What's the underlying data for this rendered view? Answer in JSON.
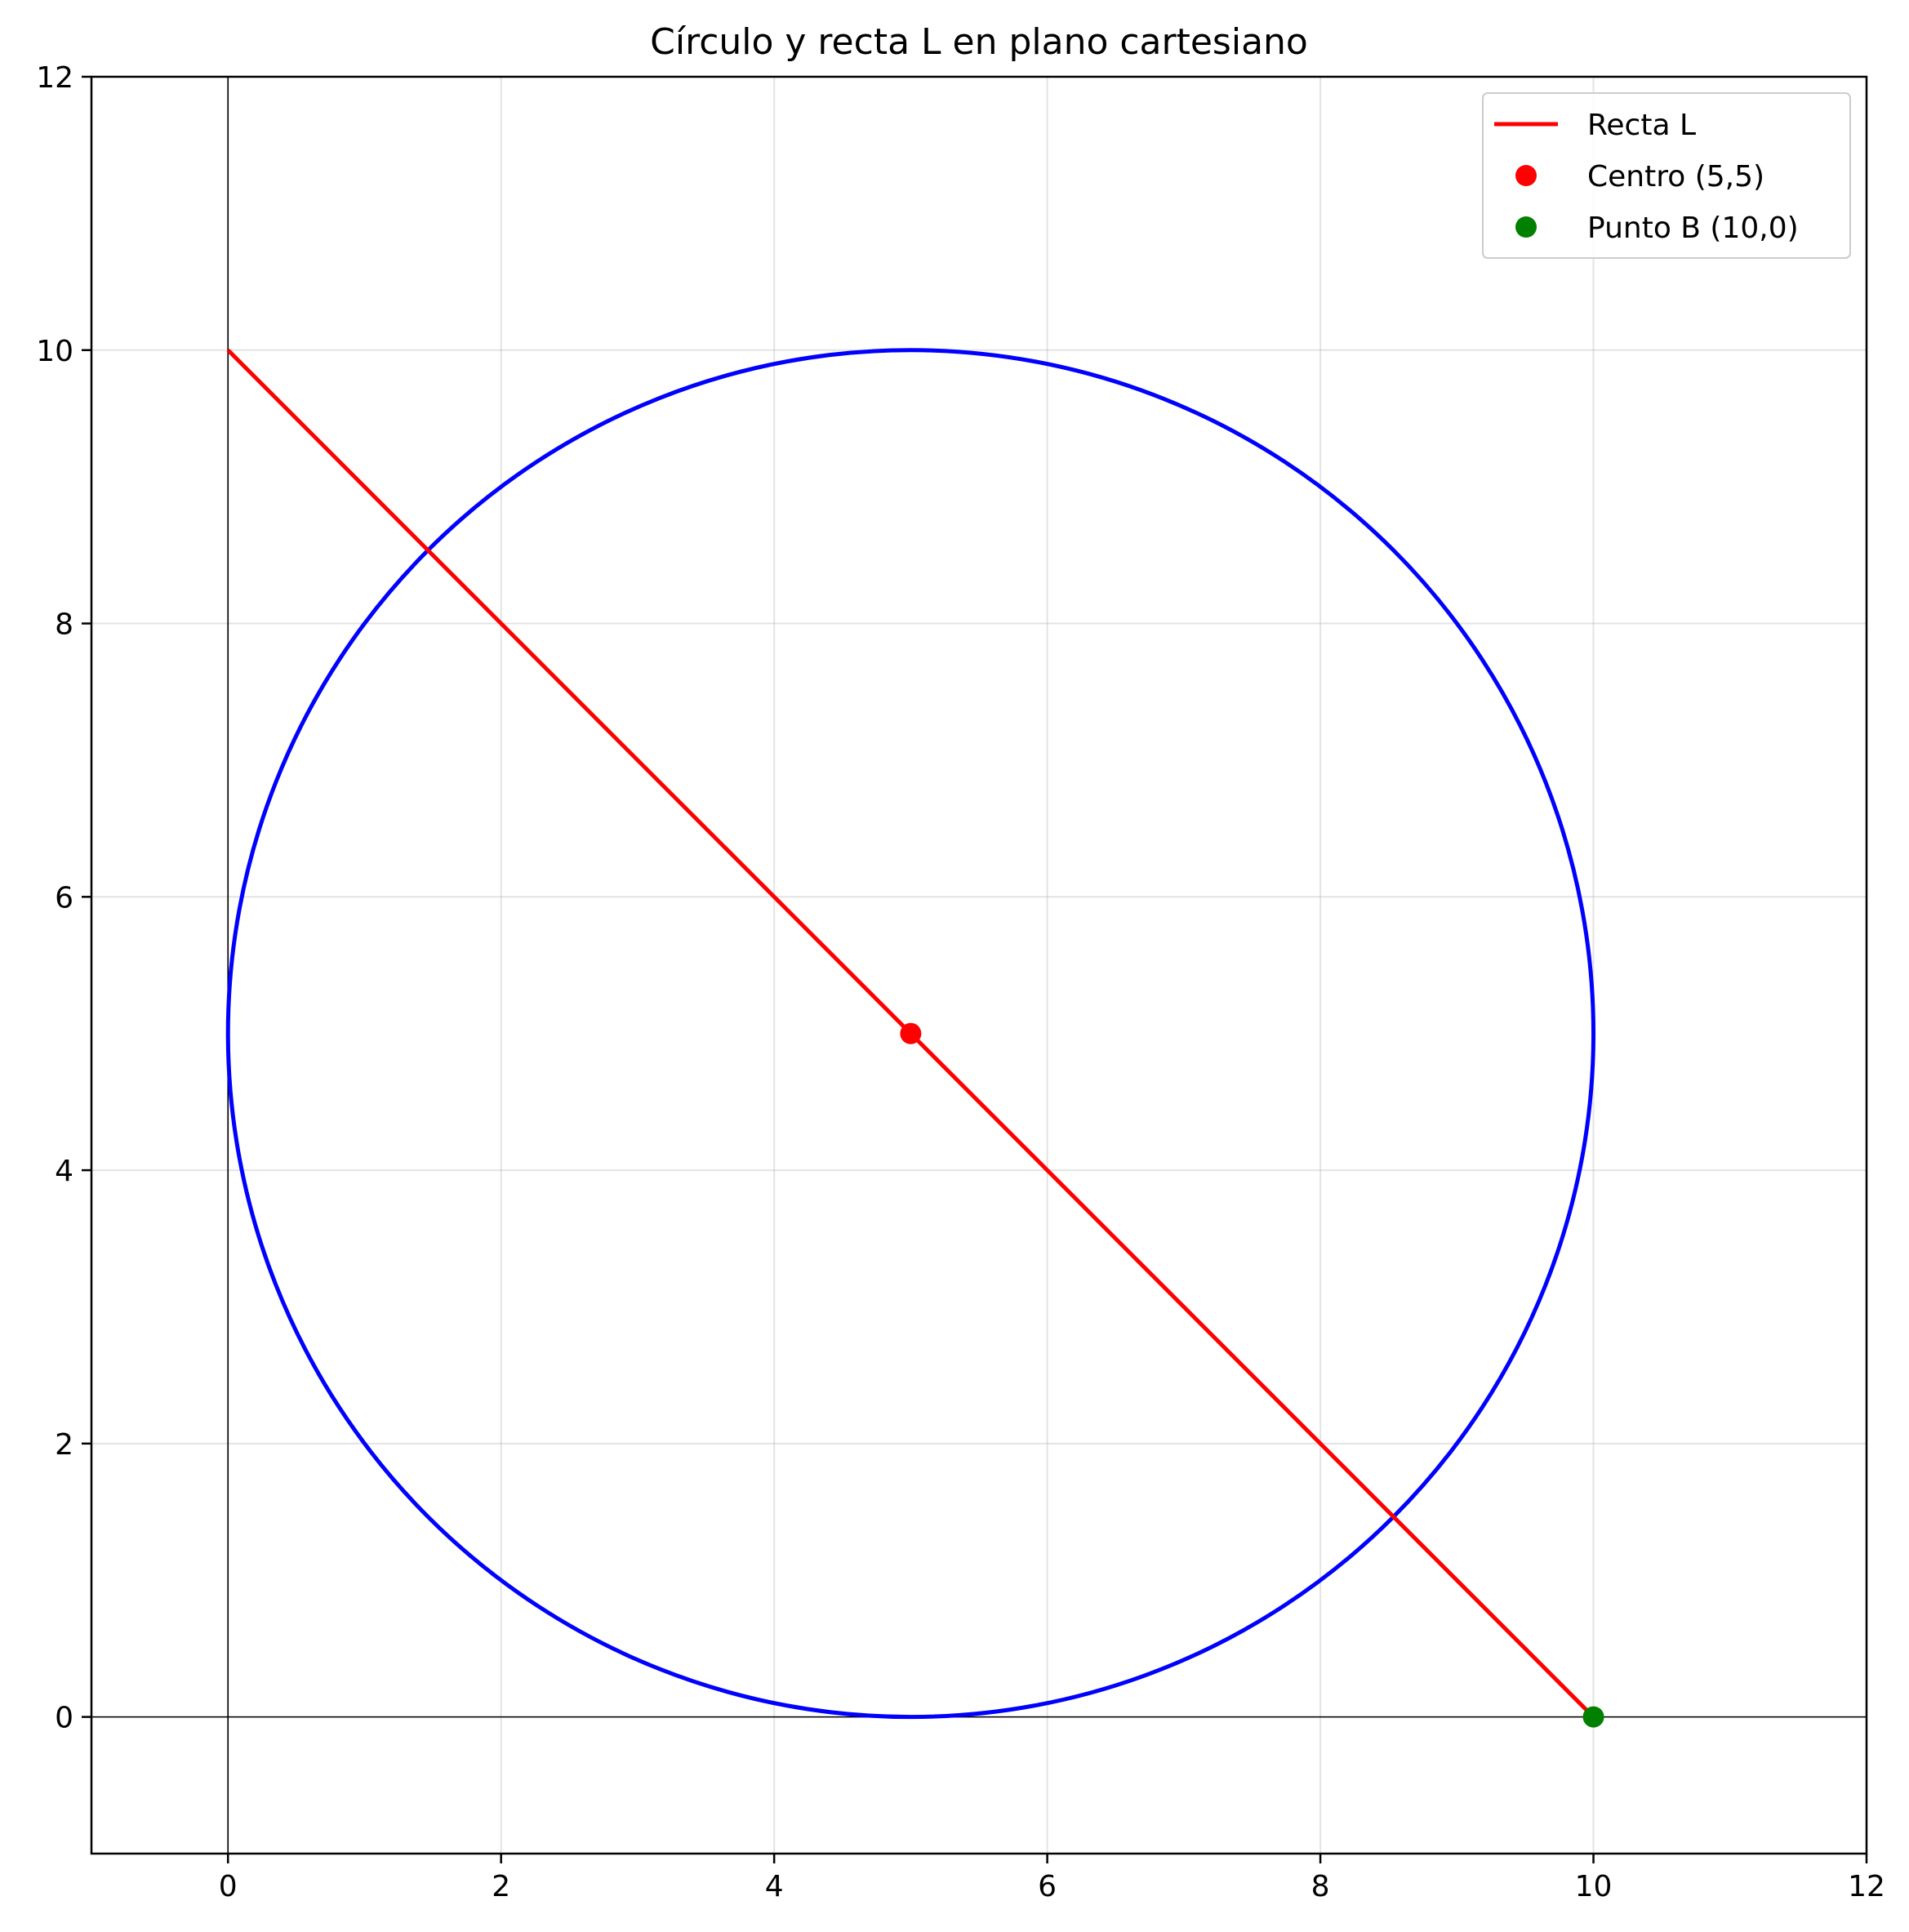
{
  "chart_data": {
    "type": "line",
    "title": "Círculo y recta L en plano cartesiano",
    "xlabel": "",
    "ylabel": "",
    "xlim": [
      -1,
      12
    ],
    "ylim": [
      -1,
      12
    ],
    "x_ticks": [
      0,
      2,
      4,
      6,
      8,
      10,
      12
    ],
    "y_ticks": [
      0,
      2,
      4,
      6,
      8,
      10,
      12
    ],
    "x_tick_labels": [
      "0",
      "2",
      "4",
      "6",
      "8",
      "10",
      "12"
    ],
    "y_tick_labels": [
      "0",
      "2",
      "4",
      "6",
      "8",
      "10",
      "12"
    ],
    "grid": true,
    "axis_lines": {
      "x": 0,
      "y": 0
    },
    "legend_position": "top-right",
    "circle": {
      "center": [
        5,
        5
      ],
      "radius": 5,
      "color": "#0000ff"
    },
    "series": [
      {
        "name": "Recta L",
        "kind": "line",
        "color": "#ff0000",
        "x": [
          0,
          10
        ],
        "y": [
          10,
          0
        ]
      },
      {
        "name": "Centro (5,5)",
        "kind": "point",
        "color": "#ff0000",
        "x": [
          5
        ],
        "y": [
          5
        ]
      },
      {
        "name": "Punto B (10,0)",
        "kind": "point",
        "color": "#008000",
        "x": [
          10
        ],
        "y": [
          0
        ]
      }
    ]
  }
}
